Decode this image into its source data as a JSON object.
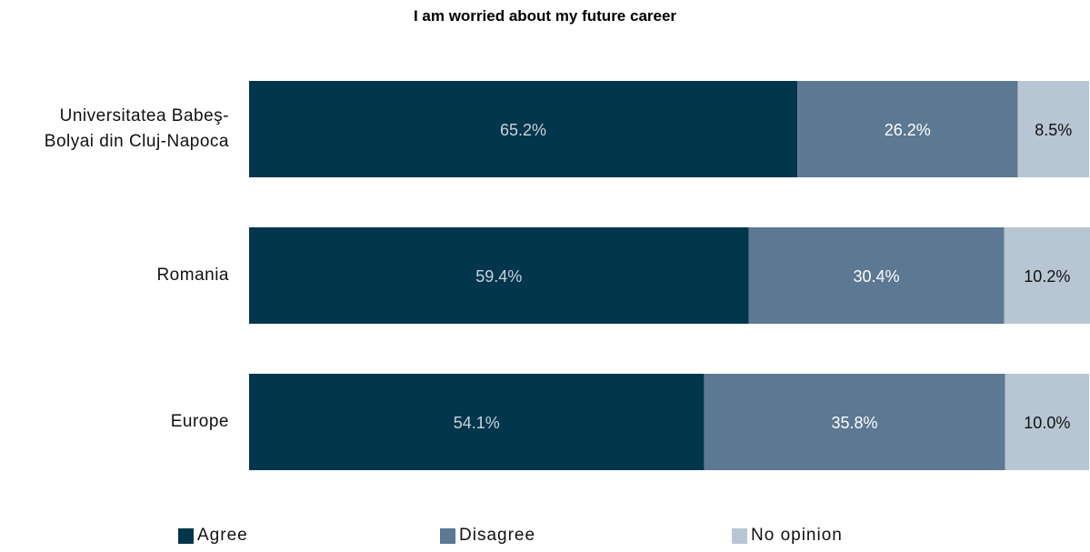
{
  "chart_data": {
    "type": "bar",
    "orientation": "horizontal",
    "stacked": true,
    "title": "I am worried about my future career",
    "categories": [
      "Universitatea Babeş-Bolyai din Cluj-Napoca",
      "Romania",
      "Europe"
    ],
    "category_lines": [
      [
        "Universitatea Babeş-",
        "Bolyai din Cluj-Napoca"
      ],
      [
        "Romania"
      ],
      [
        "Europe"
      ]
    ],
    "series": [
      {
        "name": "Agree",
        "color": "#02364c",
        "label_color": "#c9d3db",
        "values": [
          65.2,
          59.4,
          54.1
        ],
        "labels": [
          "65.2%",
          "59.4%",
          "54.1%"
        ]
      },
      {
        "name": "Disagree",
        "color": "#5c7892",
        "label_color": "#ffffff",
        "values": [
          26.2,
          30.4,
          35.8
        ],
        "labels": [
          "26.2%",
          "30.4%",
          "35.8%"
        ]
      },
      {
        "name": "No opinion",
        "color": "#b7c6d2",
        "label_color": "#111111",
        "values": [
          8.5,
          10.2,
          10.0
        ],
        "labels": [
          "8.5%",
          "10.2%",
          "10.0%"
        ]
      }
    ],
    "xlim": [
      0,
      100
    ],
    "grid": false,
    "legend_position": "bottom"
  }
}
